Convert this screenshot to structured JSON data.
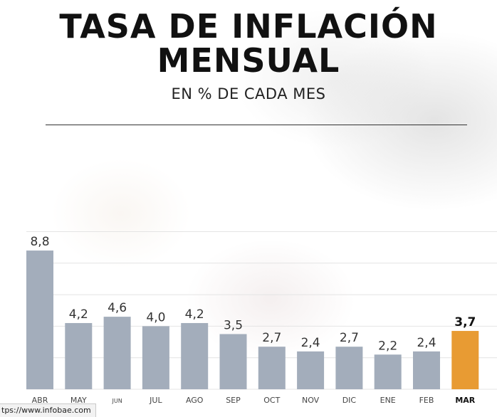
{
  "header": {
    "title_line1": "TASA DE INFLACIÓN",
    "title_line2": "MENSUAL",
    "subtitle": "EN % DE CADA MES"
  },
  "status_bar": {
    "url": "tps://www.infobae.com"
  },
  "colors": {
    "bar": "#a3adbb",
    "highlight": "#e89b33",
    "grid": "#e4e4e4"
  },
  "chart_data": {
    "type": "bar",
    "title": "TASA DE INFLACIÓN MENSUAL",
    "subtitle": "EN % DE CADA MES",
    "categories": [
      "ABR",
      "MAY",
      "JUN",
      "JUL",
      "AGO",
      "SEP",
      "OCT",
      "NOV",
      "DIC",
      "ENE",
      "FEB",
      "MAR"
    ],
    "values": [
      8.8,
      4.2,
      4.6,
      4.0,
      4.2,
      3.5,
      2.7,
      2.4,
      2.7,
      2.2,
      2.4,
      3.7
    ],
    "value_labels": [
      "8,8",
      "4,2",
      "4,6",
      "4,0",
      "4,2",
      "3,5",
      "2,7",
      "2,4",
      "2,7",
      "2,2",
      "2,4",
      "3,7"
    ],
    "highlight_index": 11,
    "ylim": [
      0,
      11.6
    ],
    "xlabel": "",
    "ylabel": "",
    "grid": true
  }
}
